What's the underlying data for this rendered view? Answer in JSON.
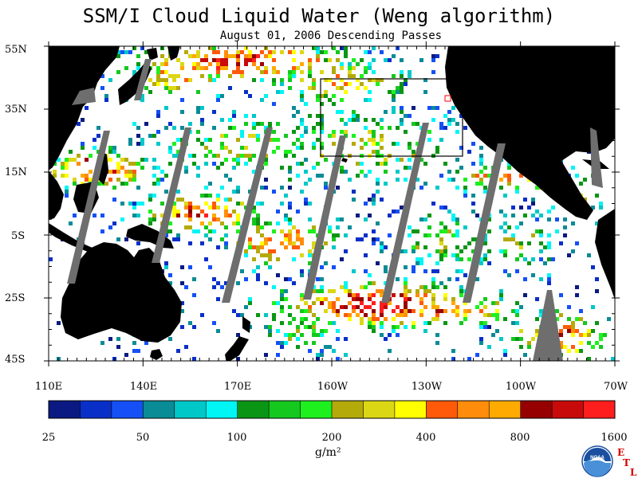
{
  "title": "SSM/I Cloud Liquid Water (Weng algorithm)",
  "subtitle": "August 01, 2006  Descending Passes",
  "lat_labels": [
    "55N",
    "35N",
    "15N",
    "5S",
    "25S",
    "45S"
  ],
  "lon_labels": [
    "110E",
    "140E",
    "170E",
    "160W",
    "130W",
    "100W",
    "70W"
  ],
  "colorbar": {
    "tick_labels": [
      "25",
      "50",
      "100",
      "200",
      "400",
      "800",
      "1600"
    ],
    "unit": "g/m²",
    "colors": [
      "#0a1a82",
      "#0a2fc8",
      "#1450f5",
      "#0a8c96",
      "#00c8c8",
      "#00f5f5",
      "#0a9614",
      "#14c81e",
      "#1ef01e",
      "#b4aa0a",
      "#dcd714",
      "#ffff00",
      "#ff5a0a",
      "#ff8c0a",
      "#ffaa00",
      "#960000",
      "#c80a0a",
      "#ff1e1e"
    ]
  },
  "logo": {
    "text": "NOAA",
    "etl": [
      "E",
      "T",
      "L"
    ]
  },
  "map_colors": {
    "land": "#000000",
    "ocean": "#ffffff",
    "swath_gap": "#6e6e6e",
    "box": "#000000",
    "marker": "#ff0000"
  }
}
